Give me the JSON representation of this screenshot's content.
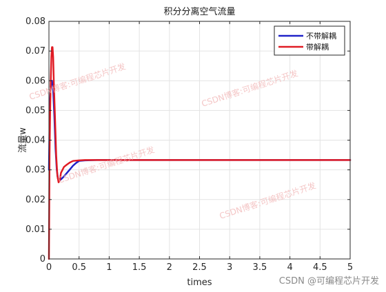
{
  "chart_data": {
    "type": "line",
    "title": "积分分离空气流量",
    "xlabel": "times",
    "ylabel": "流量w",
    "xlim": [
      0,
      5
    ],
    "ylim": [
      0,
      0.08
    ],
    "xticks": [
      0,
      0.5,
      1,
      1.5,
      2,
      2.5,
      3,
      3.5,
      4,
      4.5,
      5
    ],
    "xtick_labels": [
      "0",
      "0.5",
      "1",
      "1.5",
      "2",
      "2.5",
      "3",
      "3.5",
      "4",
      "4.5",
      "5"
    ],
    "yticks": [
      0,
      0.01,
      0.02,
      0.03,
      0.04,
      0.05,
      0.06,
      0.07,
      0.08
    ],
    "ytick_labels": [
      "0",
      "0.01",
      "0.02",
      "0.03",
      "0.04",
      "0.05",
      "0.06",
      "0.07",
      "0.08"
    ],
    "grid": true,
    "legend_position": "top-right",
    "series": [
      {
        "name": "不带解耦",
        "color": "#1f22c8",
        "x": [
          0,
          0.01,
          0.02,
          0.03,
          0.05,
          0.07,
          0.09,
          0.11,
          0.13,
          0.15,
          0.18,
          0.2,
          0.25,
          0.3,
          0.35,
          0.4,
          0.45,
          0.5,
          0.6,
          0.8,
          1,
          1.5,
          2,
          3,
          4,
          5
        ],
        "y": [
          0.03,
          0.045,
          0.054,
          0.058,
          0.06,
          0.057,
          0.048,
          0.037,
          0.03,
          0.027,
          0.0265,
          0.0268,
          0.0278,
          0.029,
          0.0302,
          0.0314,
          0.0323,
          0.033,
          0.0332,
          0.0333,
          0.0333,
          0.0333,
          0.0333,
          0.0333,
          0.0333,
          0.0333
        ]
      },
      {
        "name": "带解耦",
        "color": "#e01b24",
        "x": [
          0,
          0.005,
          0.01,
          0.02,
          0.03,
          0.04,
          0.05,
          0.06,
          0.07,
          0.08,
          0.1,
          0.12,
          0.14,
          0.16,
          0.18,
          0.2,
          0.25,
          0.3,
          0.35,
          0.4,
          0.5,
          0.6,
          0.8,
          1,
          2,
          3,
          4,
          5
        ],
        "y": [
          0,
          0.018,
          0.035,
          0.05,
          0.06,
          0.068,
          0.0713,
          0.0713,
          0.068,
          0.06,
          0.048,
          0.035,
          0.028,
          0.0258,
          0.0265,
          0.029,
          0.031,
          0.0318,
          0.0325,
          0.033,
          0.0332,
          0.0333,
          0.0333,
          0.0333,
          0.0333,
          0.0333,
          0.0333,
          0.0333
        ]
      }
    ]
  },
  "watermarks": [
    "CSDN博客:可编程芯片开发",
    "CSDN博客:可编程芯片开发",
    "CSDN博客:可编程芯片开发",
    "CSDN博客:可编程芯片开发",
    "CSDN博客:可编程芯片开发",
    "CSDN @可编程芯片开发"
  ]
}
